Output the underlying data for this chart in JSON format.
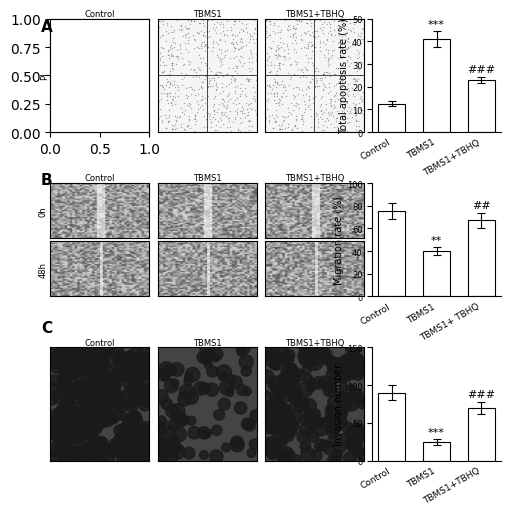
{
  "panel_A": {
    "categories": [
      "Control",
      "TBMS1",
      "TBMS1+TBHQ"
    ],
    "values": [
      12.5,
      41.0,
      23.0
    ],
    "errors": [
      1.0,
      3.5,
      1.5
    ],
    "ylabel": "Total apoptosis rate (%)",
    "ylim": [
      0,
      50
    ],
    "yticks": [
      0,
      10,
      20,
      30,
      40,
      50
    ],
    "sig_labels": [
      "",
      "***",
      "###"
    ],
    "bar_color": "#ffffff",
    "bar_edge": "#000000"
  },
  "panel_B": {
    "categories": [
      "Control",
      "TBMS1",
      "TBMS1+ TBHQ"
    ],
    "values": [
      75.0,
      40.0,
      67.0
    ],
    "errors": [
      7.0,
      3.5,
      7.0
    ],
    "ylabel": "Migration rate (%)",
    "ylim": [
      0,
      100
    ],
    "yticks": [
      0,
      20,
      40,
      60,
      80,
      100
    ],
    "sig_labels": [
      "",
      "**",
      "##"
    ],
    "bar_color": "#ffffff",
    "bar_edge": "#000000"
  },
  "panel_C": {
    "categories": [
      "Control",
      "TBMS1",
      "TBMS1+TBHQ"
    ],
    "values": [
      90.0,
      24.0,
      70.0
    ],
    "errors": [
      10.0,
      4.0,
      8.0
    ],
    "ylabel": "Invasion number",
    "ylim": [
      0,
      150
    ],
    "yticks": [
      0,
      50,
      100,
      150
    ],
    "sig_labels": [
      "",
      "***",
      "###"
    ],
    "bar_color": "#ffffff",
    "bar_edge": "#000000"
  },
  "panel_labels": [
    "A",
    "B",
    "C"
  ],
  "flow_labels": [
    "Control",
    "TBMS1",
    "TBMS1+TBHQ"
  ],
  "scratch_labels_row": [
    "0h",
    "48h"
  ],
  "invasion_labels": [
    "Control",
    "TBMS1",
    "TBMS1+TBHQ"
  ],
  "background_color": "#ffffff",
  "axis_label_fontsize": 7,
  "tick_fontsize": 6,
  "sig_fontsize": 8,
  "panel_label_fontsize": 11,
  "xticklabel_fontsize": 6.5
}
